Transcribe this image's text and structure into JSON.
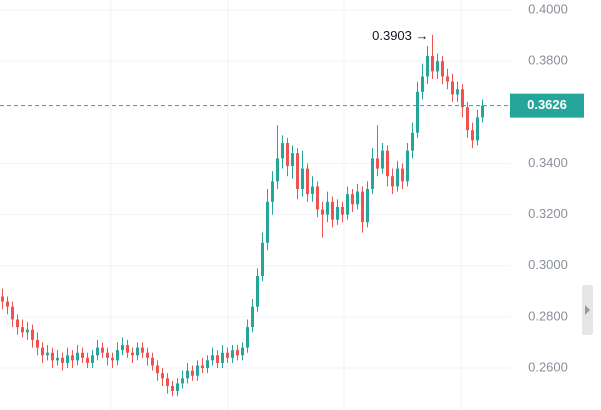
{
  "chart_data": {
    "type": "candlestick",
    "up_color": "#26a69a",
    "down_color": "#ef5350",
    "ylim": [
      0.2436,
      0.4039
    ],
    "yticks": [
      {
        "value": 0.4,
        "label": "0.4000"
      },
      {
        "value": 0.38,
        "label": "0.3800"
      },
      {
        "value": 0.34,
        "label": "0.3400"
      },
      {
        "value": 0.32,
        "label": "0.3200"
      },
      {
        "value": 0.3,
        "label": "0.3000"
      },
      {
        "value": 0.28,
        "label": "0.2800"
      },
      {
        "value": 0.26,
        "label": "0.2600"
      }
    ],
    "grid": true,
    "last_price": 0.3626,
    "last_price_label": "0.3626",
    "max_label": "0.3903 →",
    "open": [
      0.288,
      0.286,
      0.284,
      0.279,
      0.276,
      0.274,
      0.275,
      0.271,
      0.268,
      0.265,
      0.266,
      0.263,
      0.264,
      0.262,
      0.265,
      0.263,
      0.266,
      0.264,
      0.262,
      0.265,
      0.268,
      0.266,
      0.264,
      0.263,
      0.267,
      0.269,
      0.266,
      0.265,
      0.268,
      0.266,
      0.264,
      0.261,
      0.258,
      0.256,
      0.253,
      0.251,
      0.254,
      0.256,
      0.259,
      0.257,
      0.261,
      0.26,
      0.263,
      0.265,
      0.262,
      0.266,
      0.264,
      0.267,
      0.265,
      0.268,
      0.276,
      0.284,
      0.296,
      0.309,
      0.325,
      0.333,
      0.342,
      0.348,
      0.339,
      0.344,
      0.33,
      0.338,
      0.328,
      0.331,
      0.322,
      0.32,
      0.325,
      0.318,
      0.323,
      0.32,
      0.328,
      0.324,
      0.329,
      0.317,
      0.33,
      0.342,
      0.338,
      0.345,
      0.335,
      0.331,
      0.338,
      0.333,
      0.345,
      0.352,
      0.368,
      0.374,
      0.382,
      0.376,
      0.38,
      0.374,
      0.372,
      0.367,
      0.369,
      0.362,
      0.353,
      0.349,
      0.358
    ],
    "high": [
      0.291,
      0.288,
      0.286,
      0.281,
      0.279,
      0.278,
      0.277,
      0.274,
      0.27,
      0.269,
      0.268,
      0.267,
      0.266,
      0.268,
      0.267,
      0.269,
      0.268,
      0.266,
      0.267,
      0.271,
      0.27,
      0.268,
      0.266,
      0.27,
      0.272,
      0.271,
      0.268,
      0.27,
      0.27,
      0.268,
      0.266,
      0.263,
      0.26,
      0.258,
      0.255,
      0.256,
      0.259,
      0.262,
      0.261,
      0.263,
      0.264,
      0.265,
      0.268,
      0.267,
      0.269,
      0.268,
      0.269,
      0.269,
      0.27,
      0.279,
      0.287,
      0.299,
      0.313,
      0.33,
      0.337,
      0.355,
      0.351,
      0.35,
      0.347,
      0.346,
      0.345,
      0.34,
      0.335,
      0.333,
      0.325,
      0.329,
      0.327,
      0.326,
      0.325,
      0.331,
      0.33,
      0.332,
      0.331,
      0.333,
      0.346,
      0.355,
      0.348,
      0.347,
      0.338,
      0.341,
      0.34,
      0.348,
      0.356,
      0.372,
      0.379,
      0.386,
      0.3903,
      0.383,
      0.382,
      0.377,
      0.375,
      0.372,
      0.371,
      0.364,
      0.356,
      0.361,
      0.365
    ],
    "low": [
      0.283,
      0.281,
      0.276,
      0.273,
      0.272,
      0.271,
      0.268,
      0.265,
      0.262,
      0.263,
      0.26,
      0.261,
      0.259,
      0.26,
      0.26,
      0.261,
      0.262,
      0.26,
      0.26,
      0.263,
      0.264,
      0.261,
      0.26,
      0.261,
      0.265,
      0.264,
      0.262,
      0.263,
      0.264,
      0.261,
      0.259,
      0.255,
      0.253,
      0.25,
      0.249,
      0.249,
      0.252,
      0.254,
      0.255,
      0.255,
      0.258,
      0.258,
      0.261,
      0.26,
      0.26,
      0.262,
      0.262,
      0.263,
      0.263,
      0.266,
      0.274,
      0.282,
      0.294,
      0.306,
      0.32,
      0.33,
      0.338,
      0.335,
      0.334,
      0.326,
      0.327,
      0.325,
      0.325,
      0.319,
      0.311,
      0.317,
      0.315,
      0.316,
      0.317,
      0.318,
      0.321,
      0.322,
      0.313,
      0.315,
      0.328,
      0.335,
      0.336,
      0.331,
      0.328,
      0.329,
      0.33,
      0.331,
      0.342,
      0.35,
      0.365,
      0.371,
      0.373,
      0.373,
      0.371,
      0.369,
      0.364,
      0.364,
      0.358,
      0.35,
      0.346,
      0.347,
      0.356
    ],
    "close": [
      0.286,
      0.284,
      0.279,
      0.276,
      0.274,
      0.275,
      0.271,
      0.268,
      0.265,
      0.266,
      0.263,
      0.264,
      0.262,
      0.265,
      0.263,
      0.266,
      0.264,
      0.262,
      0.265,
      0.268,
      0.266,
      0.264,
      0.263,
      0.267,
      0.269,
      0.266,
      0.265,
      0.268,
      0.266,
      0.264,
      0.261,
      0.258,
      0.256,
      0.253,
      0.251,
      0.254,
      0.256,
      0.259,
      0.257,
      0.261,
      0.26,
      0.263,
      0.265,
      0.262,
      0.266,
      0.264,
      0.267,
      0.265,
      0.268,
      0.276,
      0.284,
      0.296,
      0.309,
      0.325,
      0.333,
      0.342,
      0.348,
      0.339,
      0.344,
      0.33,
      0.338,
      0.328,
      0.331,
      0.322,
      0.32,
      0.325,
      0.318,
      0.323,
      0.32,
      0.328,
      0.324,
      0.329,
      0.317,
      0.33,
      0.342,
      0.338,
      0.345,
      0.335,
      0.331,
      0.338,
      0.333,
      0.345,
      0.352,
      0.368,
      0.374,
      0.382,
      0.376,
      0.38,
      0.374,
      0.372,
      0.367,
      0.369,
      0.362,
      0.353,
      0.349,
      0.358,
      0.3626
    ]
  }
}
